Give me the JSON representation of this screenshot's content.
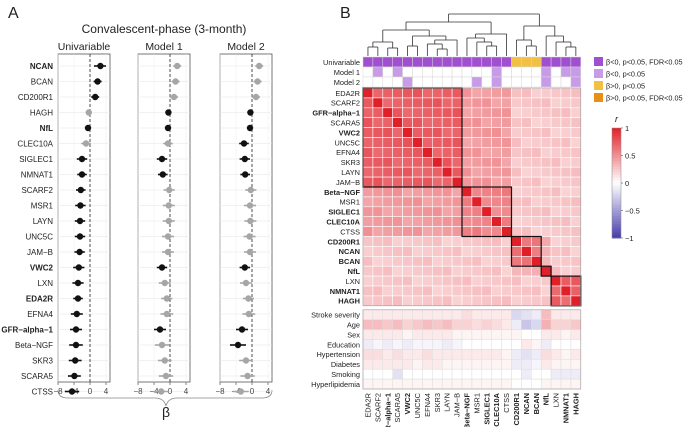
{
  "chart_data": [
    {
      "type": "forest",
      "panel_label": "A",
      "title": "Convalescent-phase (3-month)",
      "xlabel": "β",
      "xlim": [
        -8,
        5
      ],
      "xticks": [
        -8,
        -4,
        0,
        4
      ],
      "xtick_labels": [
        "−8",
        "−4",
        "0",
        "4"
      ],
      "facets": [
        "Univariable",
        "Model 1",
        "Model 2"
      ],
      "proteins": [
        {
          "label": "NCAN",
          "bold": true,
          "uni": [
            2.6,
            1.0,
            4.0,
            1
          ],
          "m1": [
            1.8,
            0.8,
            2.8,
            0
          ],
          "m2": [
            1.8,
            0.8,
            2.8,
            0
          ]
        },
        {
          "label": "BCAN",
          "bold": false,
          "uni": [
            1.9,
            0.9,
            2.9,
            1
          ],
          "m1": [
            1.4,
            0.4,
            2.4,
            0
          ],
          "m2": [
            1.4,
            0.4,
            2.4,
            0
          ]
        },
        {
          "label": "CD200R1",
          "bold": false,
          "uni": [
            1.3,
            0.3,
            2.3,
            1
          ],
          "m1": [
            1.0,
            0.0,
            2.0,
            0
          ],
          "m2": [
            1.0,
            0.0,
            2.0,
            0
          ]
        },
        {
          "label": "HAGH",
          "bold": false,
          "uni": [
            -0.3,
            -0.8,
            0.3,
            0
          ],
          "m1": [
            -0.4,
            -0.9,
            0.1,
            1
          ],
          "m2": [
            -0.4,
            -0.9,
            0.1,
            1
          ]
        },
        {
          "label": "NfL",
          "bold": true,
          "uni": [
            -0.5,
            -1.0,
            0.0,
            1
          ],
          "m1": [
            -0.5,
            -1.0,
            0.0,
            1
          ],
          "m2": [
            -0.5,
            -1.0,
            0.0,
            1
          ]
        },
        {
          "label": "CLEC10A",
          "bold": false,
          "uni": [
            -1.0,
            -2.2,
            0.2,
            0
          ],
          "m1": [
            -0.5,
            -1.7,
            0.7,
            0
          ],
          "m2": [
            -2.0,
            -3.2,
            -0.8,
            1
          ]
        },
        {
          "label": "SIGLEC1",
          "bold": false,
          "uni": [
            -2.0,
            -3.3,
            -0.7,
            1
          ],
          "m1": [
            -2.0,
            -3.3,
            -0.7,
            1
          ],
          "m2": [
            -1.8,
            -3.1,
            -0.5,
            1
          ]
        },
        {
          "label": "NMNAT1",
          "bold": false,
          "uni": [
            -2.0,
            -3.2,
            -0.8,
            1
          ],
          "m1": [
            -1.8,
            -3.0,
            -0.6,
            1
          ],
          "m2": [
            -1.7,
            -2.9,
            -0.5,
            1
          ]
        },
        {
          "label": "SCARF2",
          "bold": false,
          "uni": [
            -2.3,
            -3.5,
            -1.1,
            1
          ],
          "m1": [
            -0.2,
            -1.6,
            1.2,
            0
          ],
          "m2": [
            -0.3,
            -1.7,
            1.1,
            0
          ]
        },
        {
          "label": "MSR1",
          "bold": false,
          "uni": [
            -2.4,
            -3.7,
            -1.1,
            1
          ],
          "m1": [
            -0.3,
            -1.8,
            1.2,
            0
          ],
          "m2": [
            -0.5,
            -2.0,
            1.0,
            0
          ]
        },
        {
          "label": "LAYN",
          "bold": false,
          "uni": [
            -2.5,
            -3.8,
            -1.2,
            1
          ],
          "m1": [
            -0.3,
            -1.8,
            1.2,
            0
          ],
          "m2": [
            -0.4,
            -1.9,
            1.1,
            0
          ]
        },
        {
          "label": "UNC5C",
          "bold": false,
          "uni": [
            -2.5,
            -3.8,
            -1.2,
            1
          ],
          "m1": [
            -0.5,
            -2.0,
            1.0,
            0
          ],
          "m2": [
            -0.6,
            -2.1,
            0.9,
            0
          ]
        },
        {
          "label": "JAM−B",
          "bold": false,
          "uni": [
            -2.6,
            -3.9,
            -1.3,
            1
          ],
          "m1": [
            -0.5,
            -2.0,
            1.0,
            0
          ],
          "m2": [
            -0.5,
            -2.0,
            1.0,
            0
          ]
        },
        {
          "label": "VWC2",
          "bold": true,
          "uni": [
            -2.8,
            -4.2,
            -1.4,
            1
          ],
          "m1": [
            -2.0,
            -3.3,
            -0.7,
            1
          ],
          "m2": [
            -1.8,
            -3.1,
            -0.5,
            1
          ]
        },
        {
          "label": "LXN",
          "bold": false,
          "uni": [
            -3.0,
            -4.4,
            -1.6,
            1
          ],
          "m1": [
            -1.3,
            -2.8,
            0.2,
            0
          ],
          "m2": [
            -1.5,
            -3.0,
            0.0,
            0
          ]
        },
        {
          "label": "EDA2R",
          "bold": true,
          "uni": [
            -3.0,
            -4.2,
            -1.8,
            1
          ],
          "m1": [
            -0.8,
            -2.2,
            0.6,
            0
          ],
          "m2": [
            -0.9,
            -2.3,
            0.5,
            0
          ]
        },
        {
          "label": "EFNA4",
          "bold": false,
          "uni": [
            -3.3,
            -4.8,
            -1.8,
            1
          ],
          "m1": [
            -0.8,
            -2.4,
            0.8,
            0
          ],
          "m2": [
            -0.8,
            -2.4,
            0.8,
            0
          ]
        },
        {
          "label": "GFR−alpha−1",
          "bold": true,
          "uni": [
            -3.5,
            -5.0,
            -2.0,
            1
          ],
          "m1": [
            -2.5,
            -4.0,
            -1.0,
            1
          ],
          "m2": [
            -2.5,
            -4.0,
            -1.0,
            1
          ]
        },
        {
          "label": "Beta−NGF",
          "bold": false,
          "uni": [
            -3.5,
            -5.2,
            -1.8,
            1
          ],
          "m1": [
            -2.0,
            -3.8,
            -0.2,
            0
          ],
          "m2": [
            -3.5,
            -5.5,
            -1.5,
            1
          ]
        },
        {
          "label": "SKR3",
          "bold": false,
          "uni": [
            -3.7,
            -5.3,
            -2.1,
            1
          ],
          "m1": [
            -1.3,
            -3.0,
            0.4,
            0
          ],
          "m2": [
            -1.5,
            -3.2,
            0.2,
            0
          ]
        },
        {
          "label": "SCARA5",
          "bold": false,
          "uni": [
            -3.9,
            -5.5,
            -2.3,
            1
          ],
          "m1": [
            -1.0,
            -2.8,
            0.8,
            0
          ],
          "m2": [
            -1.1,
            -2.9,
            0.7,
            0
          ]
        },
        {
          "label": "CTSS",
          "bold": false,
          "uni": [
            -4.5,
            -6.3,
            -2.7,
            1
          ],
          "m1": [
            -2.2,
            -4.2,
            -0.2,
            0
          ],
          "m2": [
            -2.8,
            -4.8,
            -0.8,
            0
          ]
        }
      ]
    },
    {
      "type": "heatmap",
      "panel_label": "B",
      "labels": [
        {
          "text": "EDA2R",
          "bold": false
        },
        {
          "text": "SCARF2",
          "bold": false
        },
        {
          "text": "GFR−alpha−1",
          "bold": true
        },
        {
          "text": "SCARA5",
          "bold": false
        },
        {
          "text": "VWC2",
          "bold": true
        },
        {
          "text": "UNC5C",
          "bold": false
        },
        {
          "text": "EFNA4",
          "bold": false
        },
        {
          "text": "SKR3",
          "bold": false
        },
        {
          "text": "LAYN",
          "bold": false
        },
        {
          "text": "JAM−B",
          "bold": false
        },
        {
          "text": "Beta−NGF",
          "bold": true
        },
        {
          "text": "MSR1",
          "bold": false
        },
        {
          "text": "SIGLEC1",
          "bold": true
        },
        {
          "text": "CLEC10A",
          "bold": true
        },
        {
          "text": "CTSS",
          "bold": false
        },
        {
          "text": "CD200R1",
          "bold": true
        },
        {
          "text": "NCAN",
          "bold": true
        },
        {
          "text": "BCAN",
          "bold": true
        },
        {
          "text": "NfL",
          "bold": true
        },
        {
          "text": "LXN",
          "bold": false
        },
        {
          "text": "NMNAT1",
          "bold": true
        },
        {
          "text": "HAGH",
          "bold": true
        }
      ],
      "clusters": [
        [
          0,
          9
        ],
        [
          10,
          14
        ],
        [
          15,
          17
        ],
        [
          18,
          18
        ],
        [
          19,
          21
        ]
      ],
      "corr_within": [
        0.72,
        0.55,
        0.6,
        1.0,
        0.7
      ],
      "corr_between": 0.2,
      "status_rows": [
        {
          "label": "Univariable",
          "cells": [
            "uni",
            "uni",
            "uni",
            "uni",
            "uni",
            "uni",
            "uni",
            "uni",
            "uni",
            "uni",
            "uni",
            "uni",
            "uni",
            "uni",
            "uni",
            "pos",
            "pos",
            "pos",
            "uni",
            "uni",
            "uni",
            "uni"
          ]
        },
        {
          "label": "Model 1",
          "cells": [
            "",
            "m",
            "",
            "m",
            "",
            "",
            "",
            "",
            "",
            "",
            "",
            "",
            "",
            "m",
            "",
            "",
            "",
            "",
            "m",
            "",
            "m",
            "m"
          ]
        },
        {
          "label": "Model 2",
          "cells": [
            "",
            "",
            "",
            "",
            "m",
            "",
            "",
            "",
            "",
            "",
            "",
            "m",
            "",
            "m",
            "",
            "",
            "",
            "",
            "m",
            "",
            "",
            "m"
          ]
        }
      ],
      "clinical_rows": [
        {
          "label": "Stroke severity",
          "values": [
            0.1,
            0.1,
            0.1,
            0.1,
            0.1,
            0.1,
            0.1,
            0.1,
            0.1,
            0.1,
            0.15,
            0.1,
            0.1,
            0.1,
            0.1,
            -0.2,
            -0.15,
            -0.1,
            0.3,
            0.1,
            0.1,
            0.1
          ]
        },
        {
          "label": "Age",
          "values": [
            0.3,
            0.3,
            0.25,
            0.3,
            0.2,
            0.25,
            0.3,
            0.25,
            0.3,
            0.2,
            0.2,
            0.15,
            0.2,
            0.15,
            0.1,
            -0.1,
            -0.3,
            -0.2,
            0.35,
            0.2,
            0.2,
            0.25
          ]
        },
        {
          "label": "Sex",
          "values": [
            0.1,
            0.1,
            0.1,
            0.1,
            0.05,
            0.1,
            0.1,
            0.1,
            0.1,
            0.05,
            0.05,
            0.05,
            0.05,
            0.05,
            0.05,
            0.05,
            0.0,
            0.0,
            0.1,
            0.1,
            0.05,
            0.1
          ]
        },
        {
          "label": "Education",
          "values": [
            -0.1,
            -0.05,
            -0.1,
            -0.05,
            -0.1,
            -0.05,
            -0.05,
            -0.05,
            -0.1,
            -0.05,
            0.0,
            0.0,
            0.0,
            0.0,
            0.0,
            0.0,
            0.1,
            0.05,
            -0.1,
            0.0,
            0.0,
            0.0
          ]
        },
        {
          "label": "Hypertension",
          "values": [
            0.15,
            0.15,
            0.1,
            0.15,
            0.1,
            0.1,
            0.15,
            0.1,
            0.1,
            0.1,
            0.1,
            0.1,
            0.1,
            0.1,
            0.05,
            -0.1,
            -0.15,
            -0.1,
            0.15,
            0.1,
            0.05,
            0.1
          ]
        },
        {
          "label": "Diabetes",
          "values": [
            0.1,
            0.1,
            0.1,
            0.1,
            0.1,
            0.05,
            0.1,
            0.1,
            0.05,
            0.05,
            0.05,
            0.05,
            0.05,
            0.05,
            0.05,
            -0.1,
            -0.1,
            -0.05,
            0.1,
            0.05,
            0.05,
            0.05
          ]
        },
        {
          "label": "Smoking",
          "values": [
            0.0,
            0.0,
            0.0,
            -0.15,
            0.0,
            0.0,
            0.0,
            0.0,
            0.0,
            0.0,
            0.0,
            0.0,
            0.0,
            0.0,
            0.0,
            0.0,
            -0.1,
            0.0,
            0.0,
            -0.1,
            -0.1,
            -0.1
          ]
        },
        {
          "label": "Hyperlipidemia",
          "values": [
            0.05,
            0.05,
            0.05,
            0.05,
            0.05,
            0.05,
            0.05,
            0.05,
            0.05,
            0.05,
            0.05,
            0.05,
            0.05,
            0.05,
            0.05,
            0.0,
            0.0,
            0.0,
            0.05,
            0.05,
            0.05,
            0.05
          ]
        }
      ],
      "legend_status": [
        {
          "key": "uni",
          "label": "β<0, p<0.05, FDR<0.05",
          "color": "#a04fd0"
        },
        {
          "key": "m",
          "label": "β<0, p<0.05",
          "color": "#c79be8"
        },
        {
          "key": "pos",
          "label": "β>0, p<0.05",
          "color": "#f2c144"
        },
        {
          "key": "posfdr",
          "label": "β>0, p<0.05, FDR<0.05",
          "color": "#e99012"
        }
      ],
      "colorbar": {
        "title": "r",
        "range": [
          -1,
          1
        ],
        "ticks": [
          1,
          0.5,
          0,
          -0.5,
          -1
        ],
        "tick_labels": [
          "1",
          "0.5",
          "0",
          "−0.5",
          "−1"
        ]
      }
    }
  ]
}
